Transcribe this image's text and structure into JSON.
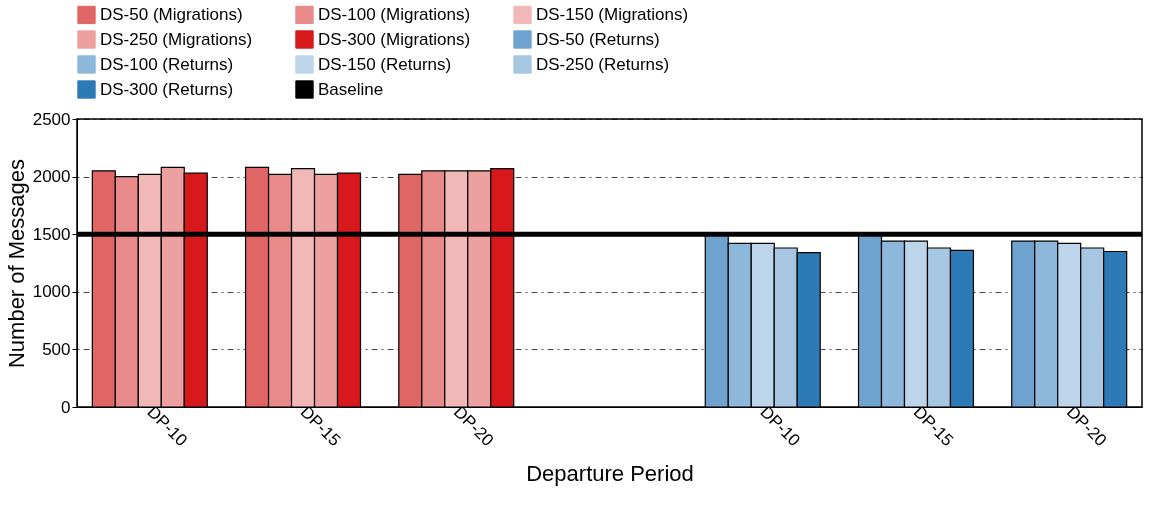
{
  "chart_data": {
    "type": "bar",
    "xlabel": "Departure Period",
    "ylabel": "Number of Messages",
    "categories": [
      "DP-10",
      "DP-15",
      "DP-20",
      null,
      "DP-10",
      "DP-15",
      "DP-20"
    ],
    "series": [
      {
        "name": "DS-50 (Migrations)",
        "color": "#e06666",
        "values": [
          2050,
          2080,
          2020,
          null,
          null,
          null,
          null
        ]
      },
      {
        "name": "DS-100 (Migrations)",
        "color": "#e88a8a",
        "values": [
          2000,
          2020,
          2050,
          null,
          null,
          null,
          null
        ]
      },
      {
        "name": "DS-150 (Migrations)",
        "color": "#f2b8b8",
        "values": [
          2020,
          2070,
          2050,
          null,
          null,
          null,
          null
        ]
      },
      {
        "name": "DS-250 (Migrations)",
        "color": "#eca0a0",
        "values": [
          2080,
          2020,
          2050,
          null,
          null,
          null,
          null
        ]
      },
      {
        "name": "DS-300 (Migrations)",
        "color": "#d7191c",
        "values": [
          2030,
          2030,
          2070,
          null,
          null,
          null,
          null
        ]
      },
      {
        "name": "DS-50 (Returns)",
        "color": "#6fa3cf",
        "values": [
          null,
          null,
          null,
          null,
          1500,
          1500,
          1440
        ]
      },
      {
        "name": "DS-100 (Returns)",
        "color": "#8db8dc",
        "values": [
          null,
          null,
          null,
          null,
          1420,
          1440,
          1440
        ]
      },
      {
        "name": "DS-150 (Returns)",
        "color": "#bcd5ea",
        "values": [
          null,
          null,
          null,
          null,
          1420,
          1440,
          1420
        ]
      },
      {
        "name": "DS-250 (Returns)",
        "color": "#a6c6e2",
        "values": [
          null,
          null,
          null,
          null,
          1380,
          1380,
          1380
        ]
      },
      {
        "name": "DS-300 (Returns)",
        "color": "#2c7bb6",
        "values": [
          null,
          null,
          null,
          null,
          1340,
          1360,
          1350
        ]
      }
    ],
    "ylim": [
      0,
      2500
    ],
    "yticks": [
      0,
      500,
      1000,
      1500,
      2000,
      2500
    ],
    "ref_lines": [
      {
        "axis": "y",
        "value": 1500,
        "label": "Baseline",
        "color": "#000000"
      }
    ],
    "grid": "y",
    "legend": "top"
  }
}
